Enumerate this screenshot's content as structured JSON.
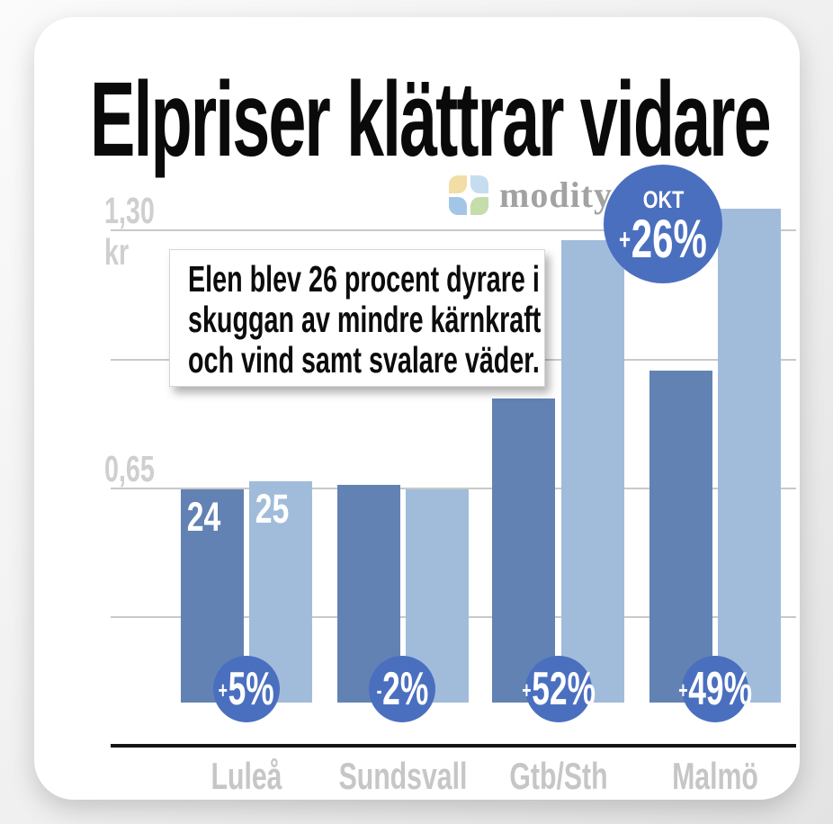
{
  "page": {
    "title": "Elpriser klättrar vidare"
  },
  "brand": {
    "name": "modity",
    "leaf_colors": {
      "top_left": "#f1dda5",
      "top_right": "#c5ddef",
      "bottom_left": "#a3c6e8",
      "bottom_right": "#c5dcab"
    }
  },
  "highlight_badge": {
    "period": "OKT",
    "sign": "+",
    "value": "26%"
  },
  "annotation": {
    "line1": "Elen blev 26 procent dyrare i",
    "line2": "skuggan av mindre kärnkraft",
    "line3": "och vind samt svalare väder."
  },
  "chart_data": {
    "type": "bar",
    "title": "Elpriser klättrar vidare",
    "ylabel": "kr",
    "ylim": [
      0,
      1.3
    ],
    "yticks": [
      {
        "label": "1,30",
        "value": 1.3
      },
      {
        "label": "0,65",
        "value": 0.65
      }
    ],
    "y_unit_label": "kr",
    "gridline_values": [
      1.3,
      0.975,
      0.65,
      0.325
    ],
    "legend_in_bars": true,
    "series_labels": [
      "24",
      "25"
    ],
    "categories": [
      "Luleå",
      "Sundsvall",
      "Gtb/Sth",
      "Malmö"
    ],
    "groups": [
      {
        "category": "Luleå",
        "values": [
          0.54,
          0.56
        ],
        "sign": "+",
        "pct": "5%"
      },
      {
        "category": "Sundsvall",
        "values": [
          0.55,
          0.54
        ],
        "sign": "-",
        "pct": "2%"
      },
      {
        "category": "Gtb/Sth",
        "values": [
          0.77,
          1.17
        ],
        "sign": "+",
        "pct": "52%"
      },
      {
        "category": "Malmö",
        "values": [
          0.84,
          1.25
        ],
        "sign": "+",
        "pct": "49%"
      }
    ],
    "colors": {
      "series_24": "#6282b3",
      "series_25": "#a1bcdb",
      "badge": "#4a6fbf",
      "axis_text": "#c9c9c9",
      "baseline": "#141414"
    }
  }
}
